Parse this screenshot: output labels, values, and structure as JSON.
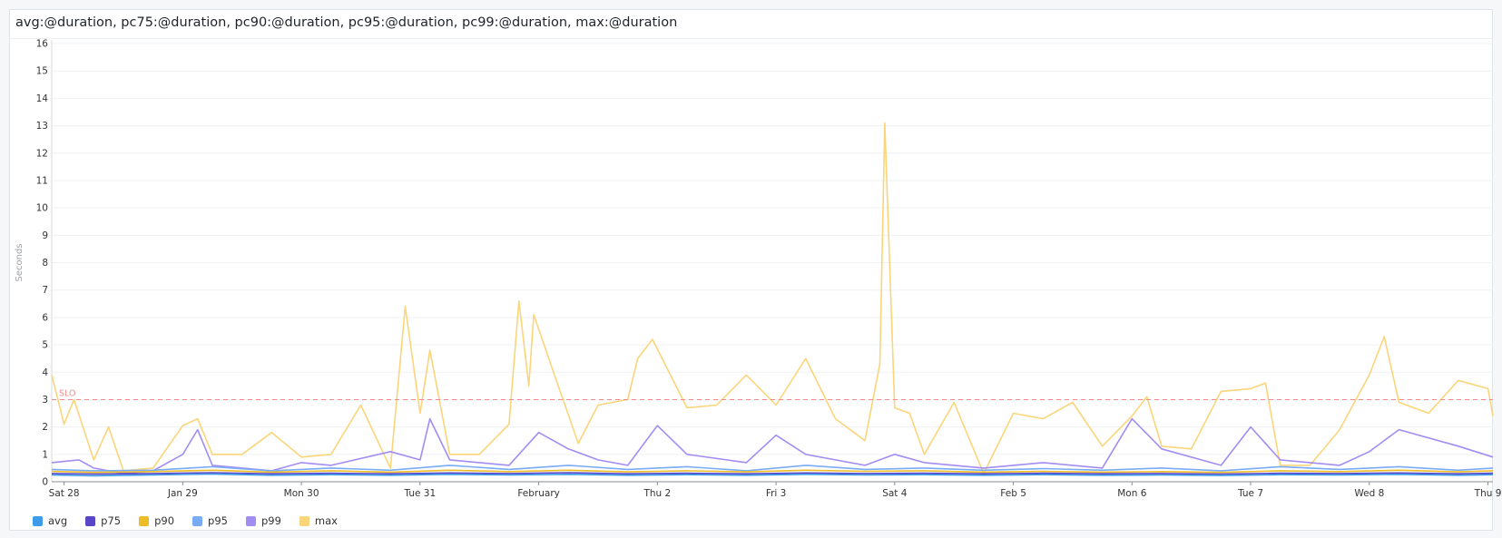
{
  "panel": {
    "title": "avg:@duration, pc75:@duration, pc90:@duration, pc95:@duration, pc99:@duration, max:@duration"
  },
  "chart_data": {
    "type": "line",
    "title": "avg:@duration, pc75:@duration, pc90:@duration, pc95:@duration, pc99:@duration, max:@duration",
    "ylabel": "Seconds",
    "xlabel": "",
    "ylim": [
      0,
      16
    ],
    "yticks": [
      0,
      1,
      2,
      3,
      4,
      5,
      6,
      7,
      8,
      9,
      10,
      11,
      12,
      13,
      14,
      15,
      16
    ],
    "xlim": [
      "2023-01-27T21:30",
      "2023-02-09T01:00"
    ],
    "xticks": [
      {
        "t": "2023-01-28T00:00",
        "label": "Sat 28"
      },
      {
        "t": "2023-01-29T00:00",
        "label": "Jan 29"
      },
      {
        "t": "2023-01-30T00:00",
        "label": "Mon 30"
      },
      {
        "t": "2023-01-31T00:00",
        "label": "Tue 31"
      },
      {
        "t": "2023-02-01T00:00",
        "label": "February"
      },
      {
        "t": "2023-02-02T00:00",
        "label": "Thu 2"
      },
      {
        "t": "2023-02-03T00:00",
        "label": "Fri 3"
      },
      {
        "t": "2023-02-04T00:00",
        "label": "Sat 4"
      },
      {
        "t": "2023-02-05T00:00",
        "label": "Feb 5"
      },
      {
        "t": "2023-02-06T00:00",
        "label": "Mon 6"
      },
      {
        "t": "2023-02-07T00:00",
        "label": "Tue 7"
      },
      {
        "t": "2023-02-08T00:00",
        "label": "Wed 8"
      },
      {
        "t": "2023-02-09T00:00",
        "label": "Thu 9"
      }
    ],
    "grid": true,
    "legend": "bottom-left",
    "markers": [
      {
        "label": "SLO",
        "y": 3,
        "color": "#f08a8a"
      }
    ],
    "series": [
      {
        "name": "avg",
        "color": "#3d9be9",
        "points": [
          [
            "2023-01-27T21:30",
            0.25
          ],
          [
            "2023-01-28T06:00",
            0.22
          ],
          [
            "2023-01-28T18:00",
            0.25
          ],
          [
            "2023-01-29T06:00",
            0.28
          ],
          [
            "2023-01-29T18:00",
            0.24
          ],
          [
            "2023-01-30T06:00",
            0.26
          ],
          [
            "2023-01-30T18:00",
            0.24
          ],
          [
            "2023-01-31T06:00",
            0.27
          ],
          [
            "2023-01-31T18:00",
            0.25
          ],
          [
            "2023-02-01T06:00",
            0.27
          ],
          [
            "2023-02-01T18:00",
            0.24
          ],
          [
            "2023-02-02T06:00",
            0.26
          ],
          [
            "2023-02-02T18:00",
            0.24
          ],
          [
            "2023-02-03T06:00",
            0.27
          ],
          [
            "2023-02-03T18:00",
            0.25
          ],
          [
            "2023-02-04T06:00",
            0.26
          ],
          [
            "2023-02-04T18:00",
            0.24
          ],
          [
            "2023-02-05T06:00",
            0.26
          ],
          [
            "2023-02-05T18:00",
            0.24
          ],
          [
            "2023-02-06T06:00",
            0.25
          ],
          [
            "2023-02-06T18:00",
            0.23
          ],
          [
            "2023-02-07T06:00",
            0.26
          ],
          [
            "2023-02-07T18:00",
            0.25
          ],
          [
            "2023-02-08T06:00",
            0.27
          ],
          [
            "2023-02-08T18:00",
            0.24
          ],
          [
            "2023-02-09T01:00",
            0.26
          ]
        ]
      },
      {
        "name": "p75",
        "color": "#5946c7",
        "points": [
          [
            "2023-01-27T21:30",
            0.3
          ],
          [
            "2023-01-28T06:00",
            0.28
          ],
          [
            "2023-01-28T18:00",
            0.3
          ],
          [
            "2023-01-29T06:00",
            0.33
          ],
          [
            "2023-01-29T18:00",
            0.29
          ],
          [
            "2023-01-30T06:00",
            0.31
          ],
          [
            "2023-01-30T18:00",
            0.29
          ],
          [
            "2023-01-31T06:00",
            0.32
          ],
          [
            "2023-01-31T18:00",
            0.3
          ],
          [
            "2023-02-01T06:00",
            0.33
          ],
          [
            "2023-02-01T18:00",
            0.29
          ],
          [
            "2023-02-02T06:00",
            0.31
          ],
          [
            "2023-02-02T18:00",
            0.29
          ],
          [
            "2023-02-03T06:00",
            0.32
          ],
          [
            "2023-02-03T18:00",
            0.3
          ],
          [
            "2023-02-04T06:00",
            0.31
          ],
          [
            "2023-02-04T18:00",
            0.29
          ],
          [
            "2023-02-05T06:00",
            0.31
          ],
          [
            "2023-02-05T18:00",
            0.29
          ],
          [
            "2023-02-06T06:00",
            0.3
          ],
          [
            "2023-02-06T18:00",
            0.28
          ],
          [
            "2023-02-07T06:00",
            0.31
          ],
          [
            "2023-02-07T18:00",
            0.3
          ],
          [
            "2023-02-08T06:00",
            0.32
          ],
          [
            "2023-02-08T18:00",
            0.29
          ],
          [
            "2023-02-09T01:00",
            0.31
          ]
        ]
      },
      {
        "name": "p90",
        "color": "#ecbd27",
        "points": [
          [
            "2023-01-27T21:30",
            0.38
          ],
          [
            "2023-01-28T06:00",
            0.34
          ],
          [
            "2023-01-28T18:00",
            0.37
          ],
          [
            "2023-01-29T06:00",
            0.42
          ],
          [
            "2023-01-29T18:00",
            0.35
          ],
          [
            "2023-01-30T06:00",
            0.4
          ],
          [
            "2023-01-30T18:00",
            0.35
          ],
          [
            "2023-01-31T06:00",
            0.42
          ],
          [
            "2023-01-31T18:00",
            0.37
          ],
          [
            "2023-02-01T06:00",
            0.42
          ],
          [
            "2023-02-01T18:00",
            0.36
          ],
          [
            "2023-02-02T06:00",
            0.4
          ],
          [
            "2023-02-02T18:00",
            0.36
          ],
          [
            "2023-02-03T06:00",
            0.42
          ],
          [
            "2023-02-03T18:00",
            0.38
          ],
          [
            "2023-02-04T06:00",
            0.4
          ],
          [
            "2023-02-04T18:00",
            0.35
          ],
          [
            "2023-02-05T06:00",
            0.38
          ],
          [
            "2023-02-05T18:00",
            0.35
          ],
          [
            "2023-02-06T06:00",
            0.37
          ],
          [
            "2023-02-06T18:00",
            0.34
          ],
          [
            "2023-02-07T06:00",
            0.4
          ],
          [
            "2023-02-07T18:00",
            0.37
          ],
          [
            "2023-02-08T06:00",
            0.42
          ],
          [
            "2023-02-08T18:00",
            0.36
          ],
          [
            "2023-02-09T01:00",
            0.4
          ]
        ]
      },
      {
        "name": "p95",
        "color": "#7aacf5",
        "points": [
          [
            "2023-01-27T21:30",
            0.45
          ],
          [
            "2023-01-28T06:00",
            0.4
          ],
          [
            "2023-01-28T18:00",
            0.42
          ],
          [
            "2023-01-29T06:00",
            0.55
          ],
          [
            "2023-01-29T18:00",
            0.4
          ],
          [
            "2023-01-30T06:00",
            0.5
          ],
          [
            "2023-01-30T18:00",
            0.42
          ],
          [
            "2023-01-31T06:00",
            0.6
          ],
          [
            "2023-01-31T18:00",
            0.45
          ],
          [
            "2023-02-01T06:00",
            0.6
          ],
          [
            "2023-02-01T18:00",
            0.45
          ],
          [
            "2023-02-02T06:00",
            0.55
          ],
          [
            "2023-02-02T18:00",
            0.4
          ],
          [
            "2023-02-03T06:00",
            0.6
          ],
          [
            "2023-02-03T18:00",
            0.45
          ],
          [
            "2023-02-04T06:00",
            0.5
          ],
          [
            "2023-02-04T18:00",
            0.42
          ],
          [
            "2023-02-05T06:00",
            0.48
          ],
          [
            "2023-02-05T18:00",
            0.42
          ],
          [
            "2023-02-06T06:00",
            0.5
          ],
          [
            "2023-02-06T18:00",
            0.4
          ],
          [
            "2023-02-07T06:00",
            0.55
          ],
          [
            "2023-02-07T18:00",
            0.45
          ],
          [
            "2023-02-08T06:00",
            0.55
          ],
          [
            "2023-02-08T18:00",
            0.42
          ],
          [
            "2023-02-09T01:00",
            0.5
          ]
        ]
      },
      {
        "name": "p99",
        "color": "#a38cf2",
        "points": [
          [
            "2023-01-27T21:30",
            0.7
          ],
          [
            "2023-01-28T03:00",
            0.8
          ],
          [
            "2023-01-28T06:00",
            0.5
          ],
          [
            "2023-01-28T12:00",
            0.3
          ],
          [
            "2023-01-28T18:00",
            0.4
          ],
          [
            "2023-01-29T00:00",
            1.0
          ],
          [
            "2023-01-29T03:00",
            1.9
          ],
          [
            "2023-01-29T06:00",
            0.6
          ],
          [
            "2023-01-29T18:00",
            0.4
          ],
          [
            "2023-01-30T00:00",
            0.7
          ],
          [
            "2023-01-30T06:00",
            0.6
          ],
          [
            "2023-01-30T18:00",
            1.1
          ],
          [
            "2023-01-31T00:00",
            0.8
          ],
          [
            "2023-01-31T02:00",
            2.3
          ],
          [
            "2023-01-31T06:00",
            0.8
          ],
          [
            "2023-01-31T18:00",
            0.6
          ],
          [
            "2023-02-01T00:00",
            1.8
          ],
          [
            "2023-02-01T06:00",
            1.2
          ],
          [
            "2023-02-01T12:00",
            0.8
          ],
          [
            "2023-02-01T18:00",
            0.6
          ],
          [
            "2023-02-02T00:00",
            2.05
          ],
          [
            "2023-02-02T06:00",
            1.0
          ],
          [
            "2023-02-02T18:00",
            0.7
          ],
          [
            "2023-02-03T00:00",
            1.7
          ],
          [
            "2023-02-03T06:00",
            1.0
          ],
          [
            "2023-02-03T12:00",
            0.8
          ],
          [
            "2023-02-03T18:00",
            0.6
          ],
          [
            "2023-02-04T00:00",
            1.0
          ],
          [
            "2023-02-04T06:00",
            0.7
          ],
          [
            "2023-02-04T18:00",
            0.5
          ],
          [
            "2023-02-05T00:00",
            0.6
          ],
          [
            "2023-02-05T06:00",
            0.7
          ],
          [
            "2023-02-05T18:00",
            0.5
          ],
          [
            "2023-02-06T00:00",
            2.3
          ],
          [
            "2023-02-06T06:00",
            1.2
          ],
          [
            "2023-02-06T18:00",
            0.6
          ],
          [
            "2023-02-07T00:00",
            2.0
          ],
          [
            "2023-02-07T06:00",
            0.8
          ],
          [
            "2023-02-07T18:00",
            0.6
          ],
          [
            "2023-02-08T00:00",
            1.1
          ],
          [
            "2023-02-08T06:00",
            1.9
          ],
          [
            "2023-02-08T18:00",
            1.3
          ],
          [
            "2023-02-09T01:00",
            0.9
          ]
        ]
      },
      {
        "name": "max",
        "color": "#fad57a",
        "points": [
          [
            "2023-01-27T21:30",
            3.9
          ],
          [
            "2023-01-28T00:00",
            2.1
          ],
          [
            "2023-01-28T02:00",
            3.0
          ],
          [
            "2023-01-28T06:00",
            0.8
          ],
          [
            "2023-01-28T09:00",
            2.0
          ],
          [
            "2023-01-28T12:00",
            0.4
          ],
          [
            "2023-01-28T18:00",
            0.5
          ],
          [
            "2023-01-29T00:00",
            2.05
          ],
          [
            "2023-01-29T03:00",
            2.3
          ],
          [
            "2023-01-29T06:00",
            1.0
          ],
          [
            "2023-01-29T12:00",
            1.0
          ],
          [
            "2023-01-29T18:00",
            1.8
          ],
          [
            "2023-01-30T00:00",
            0.9
          ],
          [
            "2023-01-30T06:00",
            1.0
          ],
          [
            "2023-01-30T12:00",
            2.8
          ],
          [
            "2023-01-30T18:00",
            0.5
          ],
          [
            "2023-01-30T21:00",
            6.4
          ],
          [
            "2023-01-31T00:00",
            2.5
          ],
          [
            "2023-01-31T02:00",
            4.8
          ],
          [
            "2023-01-31T06:00",
            1.0
          ],
          [
            "2023-01-31T12:00",
            1.0
          ],
          [
            "2023-01-31T18:00",
            2.1
          ],
          [
            "2023-01-31T20:00",
            6.6
          ],
          [
            "2023-01-31T22:00",
            3.5
          ],
          [
            "2023-01-31T23:00",
            6.1
          ],
          [
            "2023-02-01T03:00",
            4.0
          ],
          [
            "2023-02-01T08:00",
            1.4
          ],
          [
            "2023-02-01T12:00",
            2.8
          ],
          [
            "2023-02-01T18:00",
            3.0
          ],
          [
            "2023-02-01T20:00",
            4.5
          ],
          [
            "2023-02-01T23:00",
            5.2
          ],
          [
            "2023-02-02T06:00",
            2.7
          ],
          [
            "2023-02-02T12:00",
            2.8
          ],
          [
            "2023-02-02T18:00",
            3.9
          ],
          [
            "2023-02-03T00:00",
            2.8
          ],
          [
            "2023-02-03T06:00",
            4.5
          ],
          [
            "2023-02-03T12:00",
            2.3
          ],
          [
            "2023-02-03T18:00",
            1.5
          ],
          [
            "2023-02-03T21:00",
            4.3
          ],
          [
            "2023-02-04T00:00",
            2.7
          ],
          [
            "2023-02-04T03:00",
            2.5
          ],
          [
            "2023-02-03T22:00",
            13.1
          ],
          [
            "2023-02-04T06:00",
            1.0
          ],
          [
            "2023-02-04T12:00",
            2.9
          ],
          [
            "2023-02-04T18:00",
            0.3
          ],
          [
            "2023-02-05T00:00",
            2.5
          ],
          [
            "2023-02-05T06:00",
            2.3
          ],
          [
            "2023-02-05T12:00",
            2.9
          ],
          [
            "2023-02-05T18:00",
            1.3
          ],
          [
            "2023-02-06T00:00",
            2.4
          ],
          [
            "2023-02-06T03:00",
            3.1
          ],
          [
            "2023-02-06T06:00",
            1.3
          ],
          [
            "2023-02-06T12:00",
            1.2
          ],
          [
            "2023-02-06T18:00",
            3.3
          ],
          [
            "2023-02-07T00:00",
            3.4
          ],
          [
            "2023-02-07T03:00",
            3.6
          ],
          [
            "2023-02-07T06:00",
            0.6
          ],
          [
            "2023-02-07T12:00",
            0.6
          ],
          [
            "2023-02-07T18:00",
            1.9
          ],
          [
            "2023-02-08T00:00",
            3.9
          ],
          [
            "2023-02-08T03:00",
            5.3
          ],
          [
            "2023-02-08T06:00",
            2.9
          ],
          [
            "2023-02-08T12:00",
            2.5
          ],
          [
            "2023-02-08T18:00",
            3.7
          ],
          [
            "2023-02-09T00:00",
            3.4
          ],
          [
            "2023-02-09T01:00",
            2.4
          ]
        ]
      }
    ]
  }
}
